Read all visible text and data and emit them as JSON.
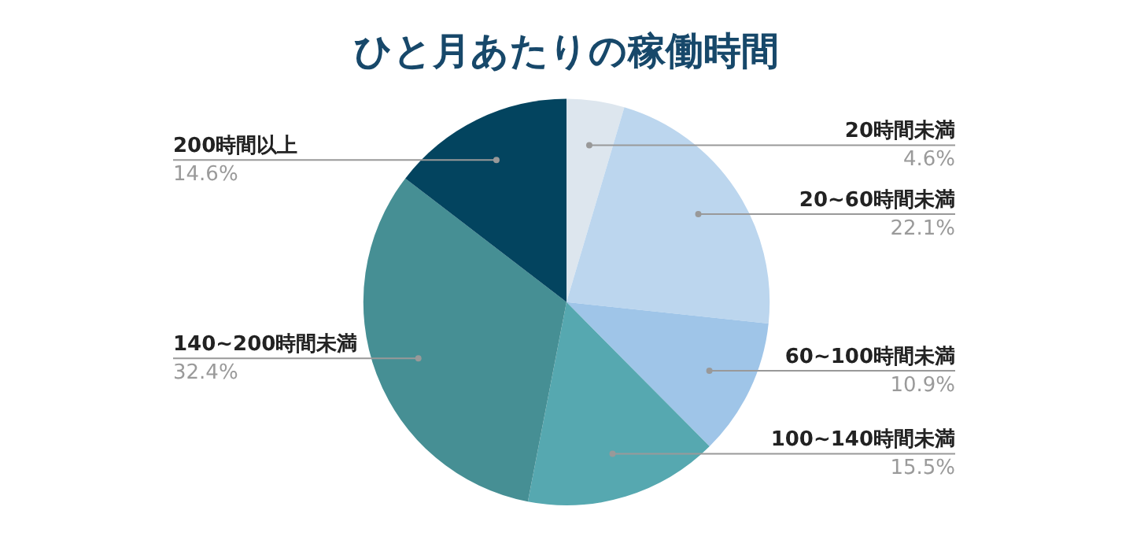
{
  "chart_data": {
    "type": "pie",
    "title": "ひと月あたりの稼働時間",
    "categories": [
      "20時間未満",
      "20~60時間未満",
      "60~100時間未満",
      "100~140時間未満",
      "140~200時間未満",
      "200時間以上"
    ],
    "values": [
      4.6,
      22.1,
      10.9,
      15.5,
      32.4,
      14.6
    ],
    "value_labels": [
      "4.6%",
      "22.1%",
      "10.9%",
      "15.5%",
      "32.4%",
      "14.6%"
    ],
    "colors": [
      "#dde6ee",
      "#bcd6ee",
      "#9fc5e8",
      "#56a8b0",
      "#468f94",
      "#03445f"
    ],
    "legend": false
  }
}
